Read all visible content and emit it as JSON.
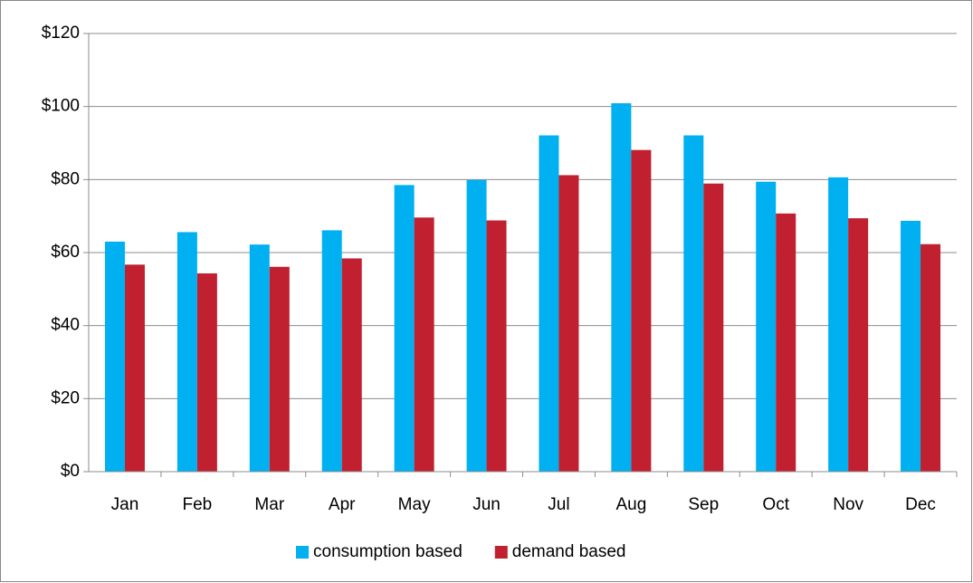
{
  "chart_data": {
    "type": "bar",
    "categories": [
      "Jan",
      "Feb",
      "Mar",
      "Apr",
      "May",
      "Jun",
      "Jul",
      "Aug",
      "Sep",
      "Oct",
      "Nov",
      "Dec"
    ],
    "series": [
      {
        "name": "consumption based",
        "color": "#00b0f0",
        "values": [
          63,
          65.6,
          62.2,
          66.1,
          78.5,
          79.9,
          92.1,
          100.9,
          92.1,
          79.4,
          80.6,
          68.7
        ]
      },
      {
        "name": "demand based",
        "color": "#c0202f",
        "values": [
          56.7,
          54.3,
          56.1,
          58.4,
          69.6,
          68.8,
          81.2,
          88.1,
          78.9,
          70.7,
          69.4,
          62.3
        ]
      }
    ],
    "ylim": [
      0,
      120
    ],
    "yticks": [
      {
        "value": 0,
        "label": "$0"
      },
      {
        "value": 20,
        "label": "$20"
      },
      {
        "value": 40,
        "label": "$40"
      },
      {
        "value": 60,
        "label": "$60"
      },
      {
        "value": 80,
        "label": "$80"
      },
      {
        "value": 100,
        "label": "$100"
      },
      {
        "value": 120,
        "label": "$120"
      }
    ],
    "grid": true,
    "legend": "bottom"
  }
}
